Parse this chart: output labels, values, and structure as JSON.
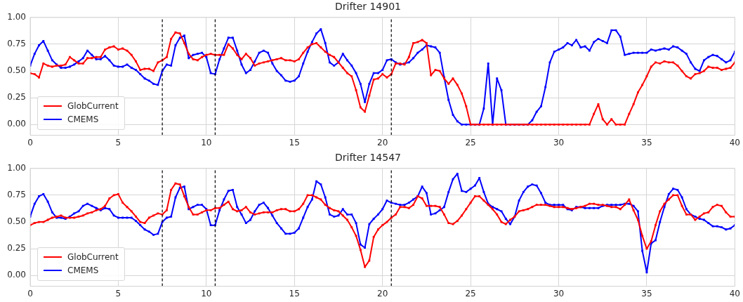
{
  "chart_data": [
    {
      "type": "line",
      "title": "Drifter 14901",
      "grid": true,
      "legend": "bottom left",
      "marker": "square",
      "line_style": "solid",
      "x": [
        0,
        0.25,
        0.5,
        0.75,
        1,
        1.25,
        1.5,
        1.75,
        2,
        2.25,
        2.5,
        2.75,
        3,
        3.25,
        3.5,
        3.75,
        4,
        4.25,
        4.5,
        4.75,
        5,
        5.25,
        5.5,
        5.75,
        6,
        6.25,
        6.5,
        6.75,
        7,
        7.25,
        7.5,
        7.75,
        8,
        8.25,
        8.5,
        8.75,
        9,
        9.25,
        9.5,
        9.75,
        10,
        10.25,
        10.5,
        10.75,
        11,
        11.25,
        11.5,
        11.75,
        12,
        12.25,
        12.5,
        12.75,
        13,
        13.25,
        13.5,
        13.75,
        14,
        14.25,
        14.5,
        14.75,
        15,
        15.25,
        15.5,
        15.75,
        16,
        16.25,
        16.5,
        16.75,
        17,
        17.25,
        17.5,
        17.75,
        18,
        18.25,
        18.5,
        18.75,
        19,
        19.25,
        19.5,
        19.75,
        20,
        20.25,
        20.5,
        20.75,
        21,
        21.25,
        21.5,
        21.75,
        22,
        22.25,
        22.5,
        22.75,
        23,
        23.25,
        23.5,
        23.75,
        24,
        24.25,
        24.5,
        24.75,
        25,
        25.25,
        25.5,
        25.75,
        26,
        26.25,
        26.5,
        26.75,
        27,
        27.25,
        27.5,
        27.75,
        28,
        28.25,
        28.5,
        28.75,
        29,
        29.25,
        29.5,
        29.75,
        30,
        30.25,
        30.5,
        30.75,
        31,
        31.25,
        31.5,
        31.75,
        32,
        32.25,
        32.5,
        32.75,
        33,
        33.25,
        33.5,
        33.75,
        34,
        34.25,
        34.5,
        34.75,
        35,
        35.25,
        35.5,
        35.75,
        36,
        36.25,
        36.5,
        36.75,
        37,
        37.25,
        37.5,
        37.75,
        38,
        38.25,
        38.5,
        38.75,
        39,
        39.25,
        39.5,
        39.75,
        40
      ],
      "xlim": [
        0,
        40
      ],
      "xticks": [
        0,
        5,
        10,
        15,
        20,
        25,
        30,
        35,
        40
      ],
      "ylim": [
        -0.1,
        1.0
      ],
      "yticks": [
        {
          "value": 0,
          "label": "0.00"
        },
        {
          "value": 0.25,
          "label": "0.25"
        },
        {
          "value": 0.5,
          "label": "0.50"
        },
        {
          "value": 0.75,
          "label": "0.75"
        },
        {
          "value": 1,
          "label": "1.00"
        }
      ],
      "ref_lines": [
        {
          "axis": "x",
          "value": 7.5,
          "color": "#000000",
          "line_style": "dashed"
        },
        {
          "axis": "x",
          "value": 10.5,
          "color": "#000000",
          "line_style": "dashed"
        },
        {
          "axis": "x",
          "value": 20.5,
          "color": "#000000",
          "line_style": "dashed"
        }
      ],
      "series": [
        {
          "name": "GlobCurrent",
          "color": "#ff0000",
          "values": [
            0.48,
            0.47,
            0.44,
            0.57,
            0.55,
            0.54,
            0.55,
            0.55,
            0.56,
            0.63,
            0.6,
            0.57,
            0.57,
            0.62,
            0.62,
            0.63,
            0.63,
            0.7,
            0.72,
            0.73,
            0.7,
            0.71,
            0.69,
            0.65,
            0.59,
            0.51,
            0.52,
            0.52,
            0.5,
            0.58,
            0.6,
            0.63,
            0.8,
            0.86,
            0.85,
            0.76,
            0.66,
            0.61,
            0.6,
            0.63,
            0.65,
            0.66,
            0.65,
            0.65,
            0.65,
            0.75,
            0.71,
            0.65,
            0.61,
            0.66,
            0.62,
            0.55,
            0.57,
            0.58,
            0.59,
            0.6,
            0.61,
            0.62,
            0.6,
            0.6,
            0.59,
            0.61,
            0.67,
            0.72,
            0.75,
            0.76,
            0.72,
            0.68,
            0.65,
            0.63,
            0.58,
            0.53,
            0.48,
            0.45,
            0.32,
            0.16,
            0.12,
            0.27,
            0.42,
            0.43,
            0.47,
            0.44,
            0.47,
            0.57,
            0.57,
            0.56,
            0.63,
            0.76,
            0.77,
            0.79,
            0.76,
            0.46,
            0.51,
            0.5,
            0.43,
            0.38,
            0.43,
            0.37,
            0.29,
            0.17,
            0,
            0,
            0,
            0,
            0,
            0,
            0,
            0,
            0,
            0,
            0,
            0,
            0,
            0,
            0,
            0,
            0,
            0,
            0,
            0,
            0,
            0,
            0,
            0,
            0,
            0,
            0,
            0,
            0.1,
            0.19,
            0.05,
            0,
            0.05,
            0,
            0,
            0,
            0.1,
            0.19,
            0.3,
            0.37,
            0.45,
            0.54,
            0.58,
            0.57,
            0.59,
            0.58,
            0.58,
            0.55,
            0.5,
            0.45,
            0.43,
            0.47,
            0.48,
            0.5,
            0.54,
            0.53,
            0.53,
            0.51,
            0.52,
            0.53,
            0.58
          ]
        },
        {
          "name": "CMEMS",
          "color": "#0000ff",
          "values": [
            0.55,
            0.66,
            0.74,
            0.78,
            0.69,
            0.6,
            0.56,
            0.53,
            0.53,
            0.54,
            0.56,
            0.59,
            0.62,
            0.69,
            0.65,
            0.61,
            0.61,
            0.64,
            0.6,
            0.55,
            0.54,
            0.54,
            0.56,
            0.53,
            0.51,
            0.47,
            0.43,
            0.41,
            0.38,
            0.37,
            0.5,
            0.56,
            0.55,
            0.74,
            0.81,
            0.83,
            0.62,
            0.65,
            0.66,
            0.67,
            0.63,
            0.48,
            0.47,
            0.61,
            0.71,
            0.81,
            0.81,
            0.69,
            0.56,
            0.48,
            0.51,
            0.59,
            0.67,
            0.69,
            0.67,
            0.57,
            0.5,
            0.46,
            0.41,
            0.4,
            0.41,
            0.45,
            0.57,
            0.68,
            0.77,
            0.85,
            0.89,
            0.76,
            0.58,
            0.55,
            0.58,
            0.66,
            0.6,
            0.55,
            0.48,
            0.38,
            0.21,
            0.38,
            0.48,
            0.48,
            0.51,
            0.6,
            0.61,
            0.58,
            0.56,
            0.57,
            0.58,
            0.62,
            0.67,
            0.7,
            0.74,
            0.73,
            0.72,
            0.67,
            0.44,
            0.23,
            0.09,
            0.03,
            0,
            0,
            0,
            0,
            0,
            0.15,
            0.57,
            0,
            0.43,
            0.32,
            0,
            0,
            0,
            0,
            0,
            0,
            0.04,
            0.12,
            0.17,
            0.35,
            0.58,
            0.68,
            0.7,
            0.72,
            0.76,
            0.74,
            0.79,
            0.72,
            0.73,
            0.69,
            0.77,
            0.8,
            0.78,
            0.76,
            0.88,
            0.88,
            0.82,
            0.65,
            0.66,
            0.67,
            0.67,
            0.67,
            0.67,
            0.7,
            0.69,
            0.7,
            0.71,
            0.7,
            0.73,
            0.72,
            0.69,
            0.66,
            0.58,
            0.52,
            0.5,
            0.6,
            0.63,
            0.65,
            0.64,
            0.61,
            0.58,
            0.6,
            0.68
          ]
        }
      ]
    },
    {
      "type": "line",
      "title": "Drifter 14547",
      "grid": true,
      "legend": "bottom left",
      "marker": "square",
      "line_style": "solid",
      "x": [
        0,
        0.25,
        0.5,
        0.75,
        1,
        1.25,
        1.5,
        1.75,
        2,
        2.25,
        2.5,
        2.75,
        3,
        3.25,
        3.5,
        3.75,
        4,
        4.25,
        4.5,
        4.75,
        5,
        5.25,
        5.5,
        5.75,
        6,
        6.25,
        6.5,
        6.75,
        7,
        7.25,
        7.5,
        7.75,
        8,
        8.25,
        8.5,
        8.75,
        9,
        9.25,
        9.5,
        9.75,
        10,
        10.25,
        10.5,
        10.75,
        11,
        11.25,
        11.5,
        11.75,
        12,
        12.25,
        12.5,
        12.75,
        13,
        13.25,
        13.5,
        13.75,
        14,
        14.25,
        14.5,
        14.75,
        15,
        15.25,
        15.5,
        15.75,
        16,
        16.25,
        16.5,
        16.75,
        17,
        17.25,
        17.5,
        17.75,
        18,
        18.25,
        18.5,
        18.75,
        19,
        19.25,
        19.5,
        19.75,
        20,
        20.25,
        20.5,
        20.75,
        21,
        21.25,
        21.5,
        21.75,
        22,
        22.25,
        22.5,
        22.75,
        23,
        23.25,
        23.5,
        23.75,
        24,
        24.25,
        24.5,
        24.75,
        25,
        25.25,
        25.5,
        25.75,
        26,
        26.25,
        26.5,
        26.75,
        27,
        27.25,
        27.5,
        27.75,
        28,
        28.25,
        28.5,
        28.75,
        29,
        29.25,
        29.5,
        29.75,
        30,
        30.25,
        30.5,
        30.75,
        31,
        31.25,
        31.5,
        31.75,
        32,
        32.25,
        32.5,
        32.75,
        33,
        33.25,
        33.5,
        33.75,
        34,
        34.25,
        34.5,
        34.75,
        35,
        35.25,
        35.5,
        35.75,
        36,
        36.25,
        36.5,
        36.75,
        37,
        37.25,
        37.5,
        37.75,
        38,
        38.25,
        38.5,
        38.75,
        39,
        39.25,
        39.5,
        39.75,
        40
      ],
      "xlim": [
        0,
        40
      ],
      "xticks": [
        0,
        5,
        10,
        15,
        20,
        25,
        30,
        35,
        40
      ],
      "ylim": [
        -0.1,
        1.0
      ],
      "yticks": [
        {
          "value": 0,
          "label": "0.00"
        },
        {
          "value": 0.25,
          "label": "0.25"
        },
        {
          "value": 0.5,
          "label": "0.50"
        },
        {
          "value": 0.75,
          "label": "0.75"
        },
        {
          "value": 1,
          "label": "1.00"
        }
      ],
      "ref_lines": [
        {
          "axis": "x",
          "value": 7.5,
          "color": "#000000",
          "line_style": "dashed"
        },
        {
          "axis": "x",
          "value": 10.5,
          "color": "#000000",
          "line_style": "dashed"
        },
        {
          "axis": "x",
          "value": 20.5,
          "color": "#000000",
          "line_style": "dashed"
        }
      ],
      "series": [
        {
          "name": "GlobCurrent",
          "color": "#ff0000",
          "values": [
            0.47,
            0.49,
            0.5,
            0.5,
            0.52,
            0.54,
            0.55,
            0.56,
            0.54,
            0.54,
            0.54,
            0.55,
            0.56,
            0.58,
            0.59,
            0.61,
            0.62,
            0.65,
            0.72,
            0.75,
            0.76,
            0.68,
            0.64,
            0.6,
            0.55,
            0.5,
            0.49,
            0.54,
            0.56,
            0.58,
            0.57,
            0.61,
            0.8,
            0.86,
            0.85,
            0.74,
            0.64,
            0.57,
            0.57,
            0.59,
            0.61,
            0.61,
            0.63,
            0.63,
            0.66,
            0.69,
            0.62,
            0.6,
            0.61,
            0.64,
            0.59,
            0.57,
            0.58,
            0.59,
            0.59,
            0.59,
            0.61,
            0.62,
            0.62,
            0.6,
            0.6,
            0.62,
            0.67,
            0.75,
            0.75,
            0.73,
            0.71,
            0.66,
            0.63,
            0.61,
            0.6,
            0.56,
            0.52,
            0.45,
            0.37,
            0.24,
            0.08,
            0.14,
            0.36,
            0.43,
            0.47,
            0.5,
            0.54,
            0.57,
            0.64,
            0.64,
            0.63,
            0.66,
            0.74,
            0.72,
            0.65,
            0.65,
            0.65,
            0.64,
            0.57,
            0.49,
            0.48,
            0.51,
            0.56,
            0.62,
            0.68,
            0.74,
            0.74,
            0.7,
            0.66,
            0.62,
            0.57,
            0.5,
            0.48,
            0.52,
            0.55,
            0.6,
            0.61,
            0.62,
            0.64,
            0.66,
            0.66,
            0.66,
            0.65,
            0.64,
            0.64,
            0.64,
            0.63,
            0.62,
            0.63,
            0.64,
            0.65,
            0.67,
            0.67,
            0.66,
            0.66,
            0.65,
            0.64,
            0.64,
            0.62,
            0.66,
            0.71,
            0.61,
            0.52,
            0.37,
            0.25,
            0.32,
            0.47,
            0.6,
            0.67,
            0.71,
            0.75,
            0.75,
            0.65,
            0.57,
            0.57,
            0.52,
            0.55,
            0.58,
            0.59,
            0.64,
            0.66,
            0.65,
            0.59,
            0.55,
            0.55
          ]
        },
        {
          "name": "CMEMS",
          "color": "#0000ff",
          "values": [
            0.55,
            0.67,
            0.74,
            0.76,
            0.69,
            0.59,
            0.54,
            0.54,
            0.53,
            0.55,
            0.58,
            0.6,
            0.65,
            0.67,
            0.65,
            0.63,
            0.61,
            0.63,
            0.62,
            0.56,
            0.54,
            0.54,
            0.54,
            0.54,
            0.51,
            0.47,
            0.43,
            0.41,
            0.38,
            0.39,
            0.5,
            0.54,
            0.55,
            0.73,
            0.82,
            0.83,
            0.62,
            0.64,
            0.66,
            0.66,
            0.62,
            0.47,
            0.47,
            0.61,
            0.71,
            0.79,
            0.8,
            0.64,
            0.57,
            0.49,
            0.52,
            0.6,
            0.66,
            0.68,
            0.63,
            0.56,
            0.49,
            0.44,
            0.39,
            0.39,
            0.4,
            0.44,
            0.54,
            0.64,
            0.71,
            0.88,
            0.85,
            0.73,
            0.57,
            0.55,
            0.56,
            0.62,
            0.57,
            0.57,
            0.49,
            0.29,
            0.26,
            0.48,
            0.53,
            0.57,
            0.62,
            0.7,
            0.68,
            0.67,
            0.66,
            0.66,
            0.68,
            0.71,
            0.74,
            0.83,
            0.77,
            0.57,
            0.58,
            0.61,
            0.64,
            0.78,
            0.9,
            0.95,
            0.79,
            0.78,
            0.81,
            0.84,
            0.91,
            0.78,
            0.67,
            0.64,
            0.62,
            0.6,
            0.53,
            0.48,
            0.55,
            0.7,
            0.78,
            0.83,
            0.85,
            0.84,
            0.77,
            0.68,
            0.66,
            0.66,
            0.66,
            0.66,
            0.62,
            0.61,
            0.64,
            0.64,
            0.63,
            0.63,
            0.63,
            0.63,
            0.65,
            0.66,
            0.66,
            0.66,
            0.66,
            0.67,
            0.67,
            0.65,
            0.6,
            0.23,
            0.03,
            0.3,
            0.33,
            0.5,
            0.64,
            0.76,
            0.81,
            0.8,
            0.73,
            0.62,
            0.57,
            0.55,
            0.53,
            0.52,
            0.49,
            0.46,
            0.46,
            0.45,
            0.43,
            0.44,
            0.47
          ]
        }
      ]
    }
  ]
}
